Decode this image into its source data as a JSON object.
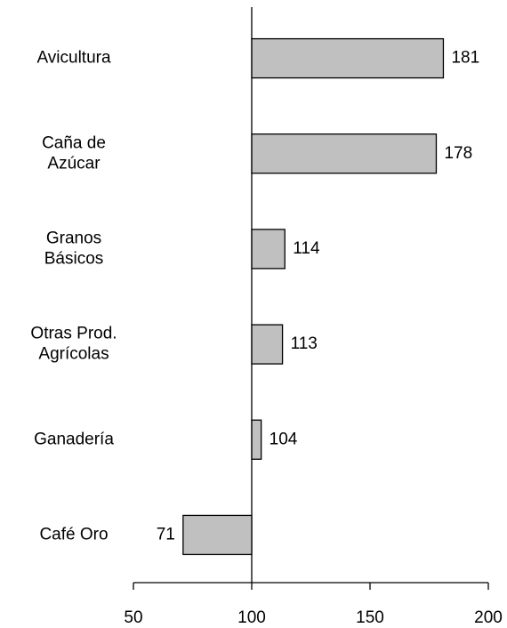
{
  "chart_data": {
    "type": "hbar",
    "categories": [
      "Avicultura",
      "Caña de\nAzúcar",
      "Granos\nBásicos",
      "Otras Prod.\nAgrícolas",
      "Ganadería",
      "Café Oro"
    ],
    "values": [
      181,
      178,
      114,
      113,
      104,
      71
    ],
    "color": "#c0c0c0",
    "base": 100,
    "xlim": [
      50,
      200
    ],
    "xticks": [
      50,
      100,
      150,
      200
    ]
  }
}
